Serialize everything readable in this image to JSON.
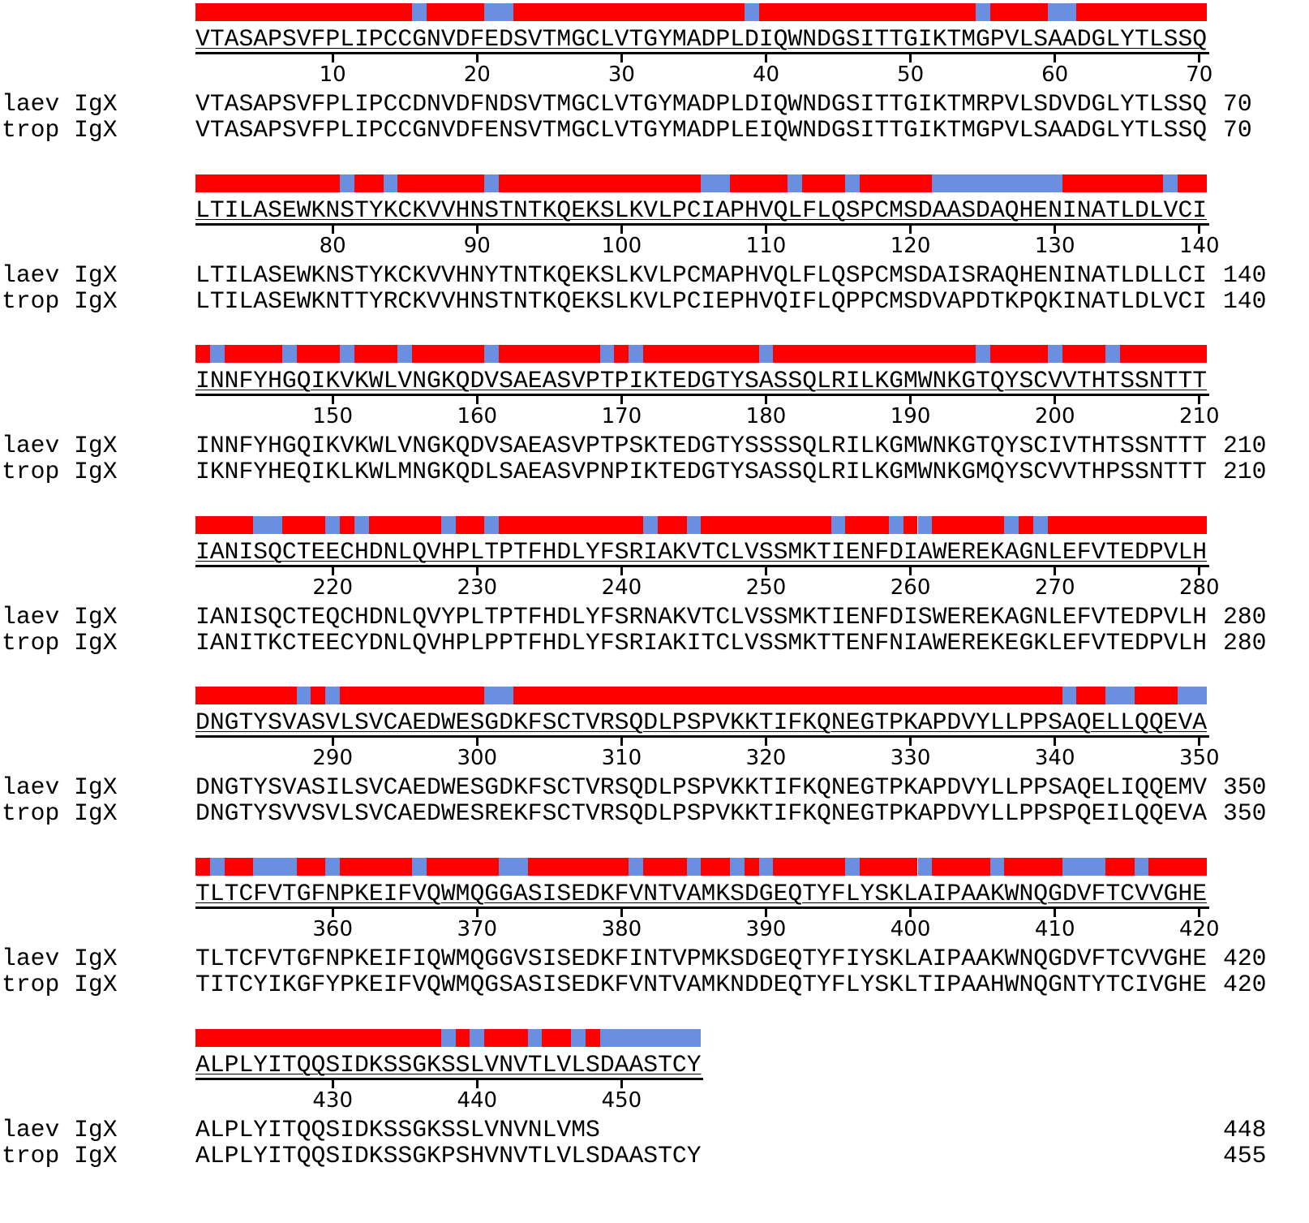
{
  "colors": {
    "identical": "#ff0000",
    "different": "#6b8fe0"
  },
  "species": [
    "laev IgX",
    "trop IgX"
  ],
  "blocks": [
    {
      "start": 1,
      "ticks": [
        "10",
        "20",
        "30",
        "40",
        "50",
        "60",
        "70"
      ],
      "consensus": "VTASAPSVFPLIPCCGNVDFEDSVTMGCLVTGYMADPLDIQWNDGSITTGIKTMGPVLSAADGLYTLSSQ",
      "laev": "VTASAPSVFPLIPCCDNVDFNDSVTMGCLVTGYMADPLDIQWNDGSITTGIKTMRPVLSDVDGLYTLSSQ",
      "trop": "VTASAPSVFPLIPCCGNVDFENSVTMGCLVTGYMADPLEIQWNDGSITTGIKTMGPVLSAADGLYTLSSQ",
      "laev_end": "70",
      "trop_end": "70"
    },
    {
      "start": 71,
      "ticks": [
        "80",
        "90",
        "100",
        "110",
        "120",
        "130",
        "140"
      ],
      "consensus": "LTILASEWKNSTYKCKVVHNSTNTKQEKSLKVLPCIAPHVQLFLQSPCMSDAASDAQHENINATLDLVCI",
      "laev": "LTILASEWKNSTYKCKVVHNYTNTKQEKSLKVLPCMAPHVQLFLQSPCMSDAISRAQHENINATLDLLCI",
      "trop": "LTILASEWKNTTYRCKVVHNSTNTKQEKSLKVLPCIEPHVQIFLQPPCMSDVAPDTKPQKINATLDLVCI",
      "laev_end": "140",
      "trop_end": "140"
    },
    {
      "start": 141,
      "ticks": [
        "150",
        "160",
        "170",
        "180",
        "190",
        "200",
        "210"
      ],
      "consensus": "INNFYHGQIKVKWLVNGKQDVSAEASVPTPIKTEDGTYSASSQLRILKGMWNKGTQYSCVVTHTSSNTTT",
      "laev": "INNFYHGQIKVKWLVNGKQDVSAEASVPTPSKTEDGTYSSSSQLRILKGMWNKGTQYSCIVTHTSSNTTT",
      "trop": "IKNFYHEQIKLKWLMNGKQDLSAEASVPNPIKTEDGTYSASSQLRILKGMWNKGMQYSCVVTHPSSNTTT",
      "laev_end": "210",
      "trop_end": "210"
    },
    {
      "start": 211,
      "ticks": [
        "220",
        "230",
        "240",
        "250",
        "260",
        "270",
        "280"
      ],
      "consensus": "IANISQCTEECHDNLQVHPLTPTFHDLYFSRIAKVTCLVSSMKTIENFDIAWEREKAGNLEFVTEDPVLH",
      "laev": "IANISQCTEQCHDNLQVYPLTPTFHDLYFSRNAKVTCLVSSMKTIENFDISWEREKAGNLEFVTEDPVLH",
      "trop": "IANITKCTEECYDNLQVHPLPPTFHDLYFSRIAKITCLVSSMKTTENFNIAWEREKEGKLEFVTEDPVLH",
      "laev_end": "280",
      "trop_end": "280"
    },
    {
      "start": 281,
      "ticks": [
        "290",
        "300",
        "310",
        "320",
        "330",
        "340",
        "350"
      ],
      "consensus": "DNGTYSVASVLSVCAEDWESGDKFSCTVRSQDLPSPVKKTIFKQNEGTPKAPDVYLLPPSAQELLQQEVA",
      "laev": "DNGTYSVASILSVCAEDWESGDKFSCTVRSQDLPSPVKKTIFKQNEGTPKAPDVYLLPPSAQELIQQEMV",
      "trop": "DNGTYSVVSVLSVCAEDWESREKFSCTVRSQDLPSPVKKTIFKQNEGTPKAPDVYLLPPSPQEILQQEVA",
      "laev_end": "350",
      "trop_end": "350"
    },
    {
      "start": 351,
      "ticks": [
        "360",
        "370",
        "380",
        "390",
        "400",
        "410",
        "420"
      ],
      "consensus": "TLTCFVTGFNPKEIFVQWMQGGASISEDKFVNTVAMKSDGEQTYFLYSKLAIPAAKWNQGDVFTCVVGHE",
      "laev": "TLTCFVTGFNPKEIFIQWMQGGVSISEDKFINTVPMKSDGEQTYFIYSKLAIPAAKWNQGDVFTCVVGHE",
      "trop": "TITCYIKGFYPKEIFVQWMQGSASISEDKFVNTVAMKNDDEQTYFLYSKLTIPAAHWNQGNTYTCIVGHE",
      "laev_end": "420",
      "trop_end": "420"
    },
    {
      "start": 421,
      "ticks": [
        "430",
        "440",
        "450"
      ],
      "consensus": "ALPLYITQQSIDKSSGKSSLVNVTLVLSDAASTCY",
      "laev": "ALPLYITQQSIDKSSGKSSLVNVNLVMS",
      "trop": "ALPLYITQQSIDKSSGKPSHVNVTLVLSDAASTCY",
      "laev_end": "448",
      "trop_end": "455"
    }
  ]
}
